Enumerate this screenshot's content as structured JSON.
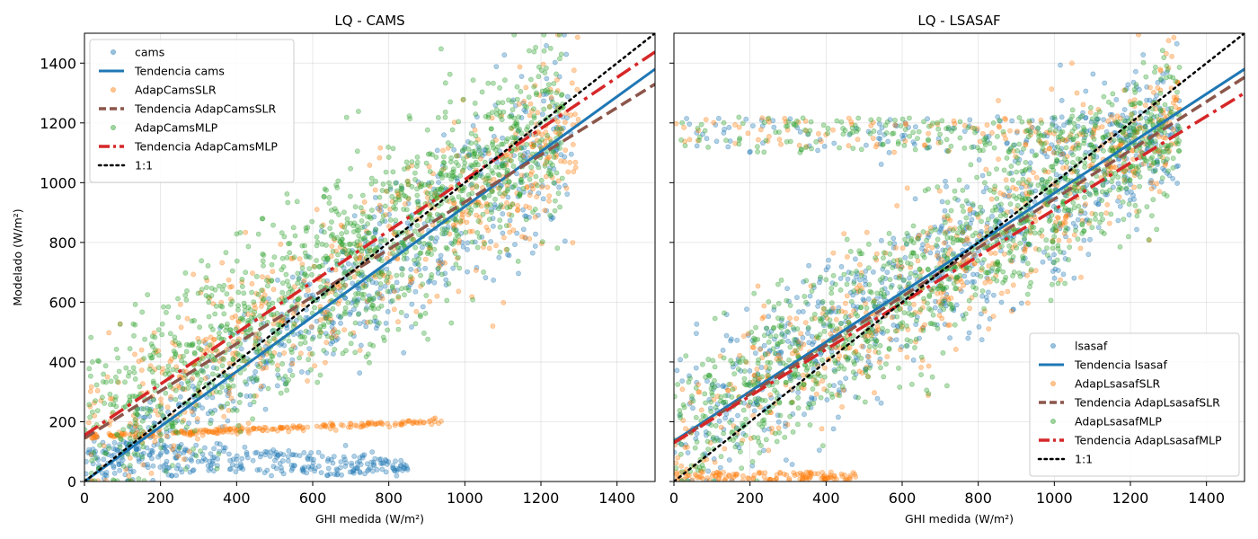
{
  "chart_data": [
    {
      "type": "scatter",
      "title": "LQ - CAMS",
      "xlabel": "GHI medida (W/m²)",
      "ylabel": "Modelado (W/m²)",
      "xlim": [
        0,
        1500
      ],
      "ylim": [
        0,
        1500
      ],
      "xticks": [
        0,
        200,
        400,
        600,
        800,
        1000,
        1200,
        1400
      ],
      "yticks": [
        0,
        200,
        400,
        600,
        800,
        1000,
        1200,
        1400
      ],
      "grid": true,
      "legend_position": "top-left",
      "series": [
        {
          "name": "cams",
          "kind": "scatter",
          "color": "#1f77b4"
        },
        {
          "name": "Tendencia cams",
          "kind": "line",
          "style": "solid",
          "color": "#1f77b4",
          "intercept": 0,
          "slope": 0.92
        },
        {
          "name": "AdapCamsSLR",
          "kind": "scatter",
          "color": "#ff7f0e"
        },
        {
          "name": "Tendencia AdapCamsSLR",
          "kind": "line",
          "style": "dashed",
          "color": "#8c564b",
          "intercept": 145,
          "slope": 0.79
        },
        {
          "name": "AdapCamsMLP",
          "kind": "scatter",
          "color": "#2ca02c"
        },
        {
          "name": "Tendencia AdapCamsMLP",
          "kind": "line",
          "style": "dashdot",
          "color": "#d62728",
          "intercept": 155,
          "slope": 0.855
        },
        {
          "name": "1:1",
          "kind": "line",
          "style": "dotted",
          "color": "#000000",
          "intercept": 0,
          "slope": 1
        }
      ]
    },
    {
      "type": "scatter",
      "title": "LQ - LSASAF",
      "xlabel": "GHI medida (W/m²)",
      "ylabel": "",
      "xlim": [
        0,
        1500
      ],
      "ylim": [
        0,
        1500
      ],
      "xticks": [
        0,
        200,
        400,
        600,
        800,
        1000,
        1200,
        1400
      ],
      "yticks": [
        0,
        200,
        400,
        600,
        800,
        1000,
        1200,
        1400
      ],
      "grid": true,
      "legend_position": "bottom-right",
      "series": [
        {
          "name": "lsasaf",
          "kind": "scatter",
          "color": "#1f77b4"
        },
        {
          "name": "Tendencia lsasaf",
          "kind": "line",
          "style": "solid",
          "color": "#1f77b4",
          "intercept": 135,
          "slope": 0.83
        },
        {
          "name": "AdapLsasafSLR",
          "kind": "scatter",
          "color": "#ff7f0e"
        },
        {
          "name": "Tendencia AdapLsasafSLR",
          "kind": "line",
          "style": "dashed",
          "color": "#8c564b",
          "intercept": 130,
          "slope": 0.815
        },
        {
          "name": "AdapLsasafMLP",
          "kind": "scatter",
          "color": "#2ca02c"
        },
        {
          "name": "Tendencia AdapLsasafMLP",
          "kind": "line",
          "style": "dashdot",
          "color": "#d62728",
          "intercept": 130,
          "slope": 0.78
        },
        {
          "name": "1:1",
          "kind": "line",
          "style": "dotted",
          "color": "#000000",
          "intercept": 0,
          "slope": 1
        }
      ]
    }
  ]
}
